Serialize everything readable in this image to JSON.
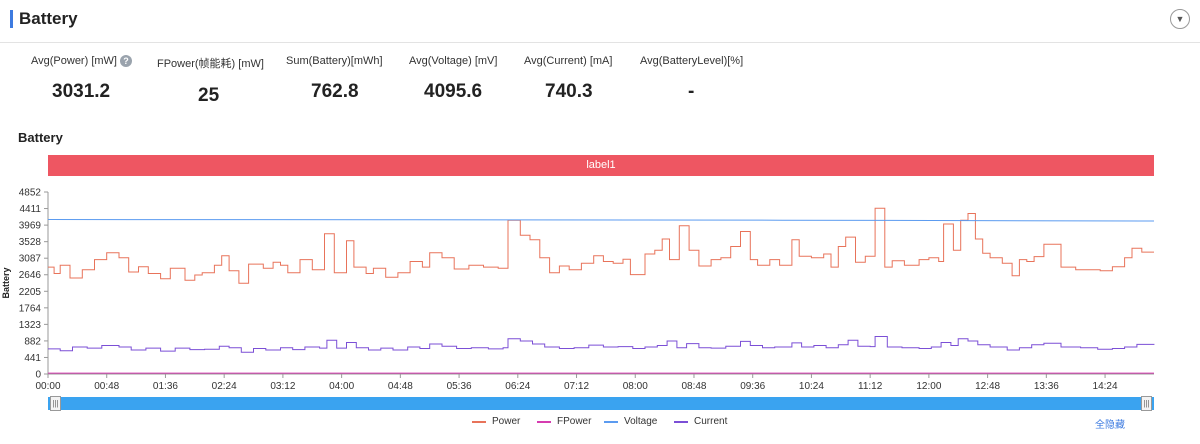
{
  "header": {
    "title": "Battery"
  },
  "stats": [
    {
      "label": "Avg(Power) [mW]",
      "value": "3031.2",
      "help": "?"
    },
    {
      "label": "FPower(帧能耗) [mW]",
      "value": "25"
    },
    {
      "label": "Sum(Battery)[mWh]",
      "value": "762.8"
    },
    {
      "label": "Avg(Voltage) [mV]",
      "value": "4095.6"
    },
    {
      "label": "Avg(Current) [mA]",
      "value": "740.3"
    },
    {
      "label": "Avg(BatteryLevel)[%]",
      "value": "-"
    }
  ],
  "chart_title": "Battery",
  "label_bar": "label1",
  "hide_all": "全隐藏",
  "colors": {
    "power": "#e8735a",
    "fpower": "#d63cb0",
    "voltage": "#5b9bf0",
    "current": "#7b4fd6"
  },
  "chart_data": {
    "type": "line",
    "ylabel": "Battery",
    "yticks": [
      "0",
      "441",
      "882",
      "1323",
      "1764",
      "2205",
      "2646",
      "3087",
      "3528",
      "3969",
      "4411",
      "4852"
    ],
    "ylim": [
      0,
      4852
    ],
    "xticks": [
      "00:00",
      "00:48",
      "01:36",
      "02:24",
      "03:12",
      "04:00",
      "04:48",
      "05:36",
      "06:24",
      "07:12",
      "08:00",
      "08:48",
      "09:36",
      "10:24",
      "11:12",
      "12:00",
      "12:48",
      "13:36",
      "14:24"
    ],
    "x_tick_step_seconds": 48,
    "x_range_seconds": [
      0,
      904
    ],
    "legend_position": "bottom",
    "series": [
      {
        "name": "Power",
        "step": true,
        "points": [
          [
            0,
            2850
          ],
          [
            5,
            2680
          ],
          [
            10,
            2900
          ],
          [
            18,
            2560
          ],
          [
            28,
            2780
          ],
          [
            38,
            3050
          ],
          [
            48,
            3230
          ],
          [
            58,
            3100
          ],
          [
            66,
            2720
          ],
          [
            74,
            2860
          ],
          [
            82,
            2680
          ],
          [
            92,
            2540
          ],
          [
            100,
            2820
          ],
          [
            112,
            2500
          ],
          [
            120,
            2640
          ],
          [
            126,
            2700
          ],
          [
            136,
            2900
          ],
          [
            142,
            3150
          ],
          [
            148,
            2750
          ],
          [
            156,
            2420
          ],
          [
            164,
            2930
          ],
          [
            176,
            2820
          ],
          [
            184,
            2980
          ],
          [
            190,
            2900
          ],
          [
            196,
            2700
          ],
          [
            206,
            3050
          ],
          [
            216,
            2780
          ],
          [
            226,
            3740
          ],
          [
            234,
            2700
          ],
          [
            244,
            3550
          ],
          [
            250,
            2850
          ],
          [
            260,
            2680
          ],
          [
            266,
            2820
          ],
          [
            276,
            2580
          ],
          [
            286,
            2700
          ],
          [
            296,
            3000
          ],
          [
            306,
            2850
          ],
          [
            312,
            3230
          ],
          [
            322,
            3100
          ],
          [
            332,
            2800
          ],
          [
            344,
            2900
          ],
          [
            356,
            2850
          ],
          [
            368,
            2820
          ],
          [
            376,
            4100
          ],
          [
            386,
            3700
          ],
          [
            394,
            3580
          ],
          [
            402,
            3100
          ],
          [
            410,
            2700
          ],
          [
            418,
            2880
          ],
          [
            426,
            2780
          ],
          [
            436,
            2950
          ],
          [
            446,
            3150
          ],
          [
            454,
            3000
          ],
          [
            462,
            2950
          ],
          [
            470,
            3060
          ],
          [
            476,
            2650
          ],
          [
            488,
            3200
          ],
          [
            496,
            3300
          ],
          [
            502,
            3600
          ],
          [
            508,
            3050
          ],
          [
            516,
            3950
          ],
          [
            524,
            3300
          ],
          [
            532,
            2880
          ],
          [
            542,
            3050
          ],
          [
            550,
            3100
          ],
          [
            558,
            3400
          ],
          [
            566,
            3800
          ],
          [
            574,
            3050
          ],
          [
            580,
            2900
          ],
          [
            590,
            3050
          ],
          [
            598,
            2900
          ],
          [
            608,
            3580
          ],
          [
            614,
            3140
          ],
          [
            624,
            3100
          ],
          [
            634,
            3200
          ],
          [
            640,
            2850
          ],
          [
            646,
            3400
          ],
          [
            652,
            3650
          ],
          [
            660,
            2980
          ],
          [
            668,
            3140
          ],
          [
            676,
            4420
          ],
          [
            684,
            2850
          ],
          [
            690,
            3020
          ],
          [
            700,
            2900
          ],
          [
            712,
            3050
          ],
          [
            720,
            3100
          ],
          [
            728,
            3000
          ],
          [
            732,
            4000
          ],
          [
            740,
            3300
          ],
          [
            746,
            4100
          ],
          [
            752,
            4280
          ],
          [
            758,
            3600
          ],
          [
            764,
            3220
          ],
          [
            770,
            3100
          ],
          [
            780,
            2950
          ],
          [
            788,
            2620
          ],
          [
            794,
            3050
          ],
          [
            800,
            3000
          ],
          [
            806,
            3130
          ],
          [
            814,
            3460
          ],
          [
            828,
            2850
          ],
          [
            840,
            2780
          ],
          [
            850,
            2780
          ],
          [
            860,
            2750
          ],
          [
            870,
            2860
          ],
          [
            880,
            3100
          ],
          [
            886,
            3350
          ],
          [
            894,
            3250
          ],
          [
            904,
            3250
          ]
        ]
      },
      {
        "name": "FPower",
        "step": false,
        "points": [
          [
            0,
            25
          ],
          [
            904,
            25
          ]
        ]
      },
      {
        "name": "Voltage",
        "step": false,
        "points": [
          [
            0,
            4120
          ],
          [
            300,
            4110
          ],
          [
            600,
            4100
          ],
          [
            904,
            4080
          ]
        ]
      },
      {
        "name": "Current",
        "step": true,
        "points": [
          [
            0,
            670
          ],
          [
            10,
            620
          ],
          [
            20,
            720
          ],
          [
            32,
            690
          ],
          [
            44,
            760
          ],
          [
            58,
            720
          ],
          [
            68,
            640
          ],
          [
            80,
            690
          ],
          [
            92,
            610
          ],
          [
            104,
            690
          ],
          [
            116,
            650
          ],
          [
            128,
            660
          ],
          [
            140,
            740
          ],
          [
            148,
            700
          ],
          [
            158,
            580
          ],
          [
            168,
            680
          ],
          [
            178,
            640
          ],
          [
            190,
            700
          ],
          [
            200,
            650
          ],
          [
            210,
            720
          ],
          [
            222,
            690
          ],
          [
            228,
            900
          ],
          [
            236,
            690
          ],
          [
            244,
            840
          ],
          [
            252,
            700
          ],
          [
            262,
            640
          ],
          [
            272,
            690
          ],
          [
            282,
            640
          ],
          [
            294,
            720
          ],
          [
            304,
            680
          ],
          [
            312,
            800
          ],
          [
            322,
            740
          ],
          [
            334,
            680
          ],
          [
            346,
            700
          ],
          [
            360,
            670
          ],
          [
            372,
            700
          ],
          [
            376,
            940
          ],
          [
            386,
            880
          ],
          [
            396,
            800
          ],
          [
            406,
            720
          ],
          [
            418,
            680
          ],
          [
            430,
            700
          ],
          [
            442,
            770
          ],
          [
            454,
            720
          ],
          [
            466,
            730
          ],
          [
            478,
            680
          ],
          [
            488,
            720
          ],
          [
            498,
            760
          ],
          [
            506,
            880
          ],
          [
            514,
            700
          ],
          [
            522,
            810
          ],
          [
            532,
            700
          ],
          [
            542,
            690
          ],
          [
            554,
            740
          ],
          [
            566,
            870
          ],
          [
            574,
            760
          ],
          [
            584,
            700
          ],
          [
            594,
            720
          ],
          [
            608,
            830
          ],
          [
            616,
            720
          ],
          [
            626,
            760
          ],
          [
            636,
            700
          ],
          [
            646,
            780
          ],
          [
            654,
            900
          ],
          [
            662,
            740
          ],
          [
            672,
            730
          ],
          [
            676,
            1000
          ],
          [
            686,
            720
          ],
          [
            698,
            700
          ],
          [
            712,
            680
          ],
          [
            722,
            720
          ],
          [
            730,
            840
          ],
          [
            738,
            760
          ],
          [
            744,
            940
          ],
          [
            752,
            880
          ],
          [
            760,
            780
          ],
          [
            770,
            720
          ],
          [
            784,
            640
          ],
          [
            794,
            700
          ],
          [
            804,
            780
          ],
          [
            814,
            820
          ],
          [
            828,
            720
          ],
          [
            844,
            700
          ],
          [
            858,
            660
          ],
          [
            870,
            680
          ],
          [
            880,
            720
          ],
          [
            890,
            790
          ],
          [
            904,
            780
          ]
        ]
      }
    ]
  }
}
